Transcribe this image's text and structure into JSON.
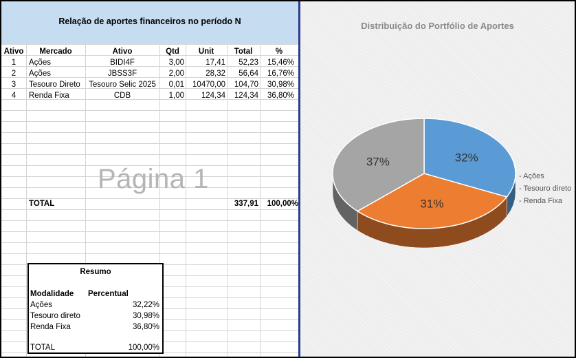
{
  "spreadsheet": {
    "title": "Relação de aportes financeiros no período N",
    "headers": [
      "Ativo",
      "Mercado",
      "Ativo",
      "Qtd",
      "Unit",
      "Total",
      "%"
    ],
    "rows": [
      [
        "1",
        "Ações",
        "BIDI4F",
        "3,00",
        "17,41",
        "52,23",
        "15,46%"
      ],
      [
        "2",
        "Ações",
        "JBSS3F",
        "2,00",
        "28,32",
        "56,64",
        "16,76%"
      ],
      [
        "3",
        "Tesouro Direto",
        "Tesouro Selic 2025",
        "0,01",
        "10470,00",
        "104,70",
        "30,98%"
      ],
      [
        "4",
        "Renda Fixa",
        "CDB",
        "1,00",
        "124,34",
        "124,34",
        "36,80%"
      ]
    ],
    "watermark": "Página 1",
    "total_label": "TOTAL",
    "total_value": "337,91",
    "total_pct": "100,00%"
  },
  "resumo": {
    "title": "Resumo",
    "col_modalidade": "Modalidade",
    "col_percentual": "Percentual",
    "rows": [
      [
        "Ações",
        "32,22%"
      ],
      [
        "Tesouro direto",
        "30,98%"
      ],
      [
        "Renda Fixa",
        "36,80%"
      ]
    ],
    "total_label": "TOTAL",
    "total_value": "100,00%"
  },
  "chart_data": {
    "type": "pie",
    "title": "Distribuição do Portfólio  de Aportes",
    "categories": [
      "Ações",
      "Tesouro direto",
      "Renda Fixa"
    ],
    "values": [
      32,
      31,
      37
    ],
    "labels": [
      "32%",
      "31%",
      "37%"
    ],
    "colors": [
      "#5b9bd5",
      "#ed7d31",
      "#a5a5a5"
    ],
    "legend_position": "right",
    "3d": true
  }
}
